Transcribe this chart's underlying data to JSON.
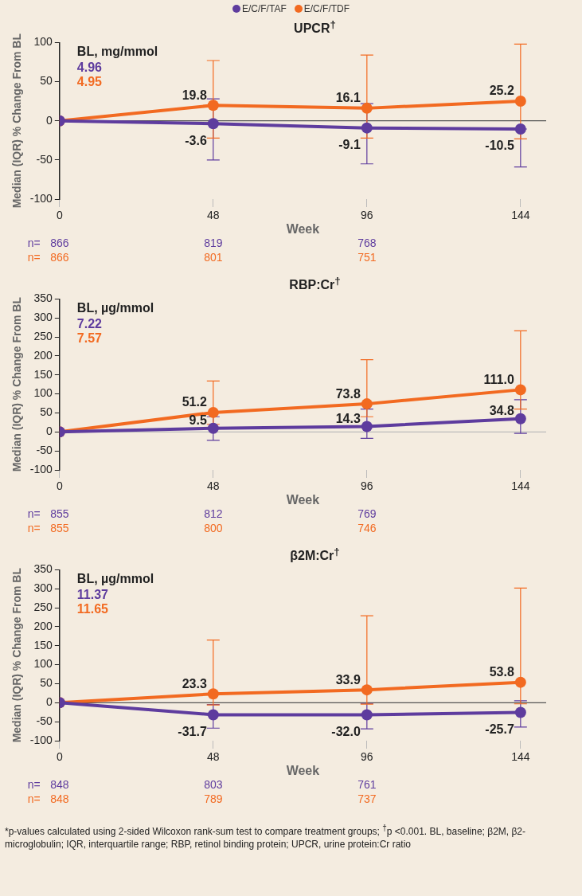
{
  "chart_data": [
    {
      "type": "line",
      "title": "UPCR$^{†}$",
      "xlabel": "Week",
      "ylabel": "Median (IQR) % Change From BL",
      "x": [
        0,
        48,
        96,
        144
      ],
      "xlim": [
        0,
        152
      ],
      "xticks": [
        0,
        48,
        96,
        144
      ],
      "ylim": [
        -100,
        100
      ],
      "yticks": [
        -100,
        -50,
        0,
        50,
        100
      ],
      "grid": false,
      "legend": "top",
      "marker": "circle",
      "line_style": "solid",
      "ref_lines": [
        {
          "axis": "y",
          "value": 0,
          "color": "#555555"
        }
      ],
      "annotations": [
        "BL, mg/mmol",
        "4.96",
        "4.95",
        "n= 866 819 768",
        "n= 866 801 751"
      ],
      "series": [
        {
          "name": "E/C/F/TAF",
          "color": "#5e3c9e",
          "values": [
            0,
            -3.6,
            -9.1,
            -10.5
          ],
          "errors": [
            null,
            [
              -50,
              28
            ],
            [
              -55,
              22
            ],
            [
              -59,
              -10.5
            ]
          ],
          "value_labels": [
            null,
            "-3.6",
            "-9.1",
            "-10.5"
          ]
        },
        {
          "name": "E/C/F/TDF",
          "color": "#f26a21",
          "values": [
            0,
            19.8,
            16.1,
            25.2
          ],
          "errors": [
            null,
            [
              -22,
              77
            ],
            [
              -22,
              84
            ],
            [
              -23,
              98
            ]
          ],
          "value_labels": [
            null,
            "19.8",
            "16.1",
            "25.2"
          ]
        }
      ]
    },
    {
      "type": "line",
      "title": "RBP:Cr$^{†}$",
      "xlabel": "Week",
      "ylabel": "Median (IQR) % Change From BL",
      "x": [
        0,
        48,
        96,
        144
      ],
      "xlim": [
        0,
        152
      ],
      "xticks": [
        0,
        48,
        96,
        144
      ],
      "ylim": [
        -100,
        350
      ],
      "yticks": [
        -100,
        -50,
        0,
        50,
        100,
        150,
        200,
        250,
        300,
        350
      ],
      "grid": false,
      "marker": "circle",
      "line_style": "solid",
      "ref_lines": [
        {
          "axis": "y",
          "value": 0,
          "color": "#bbbbbb"
        }
      ],
      "annotations": [
        "BL, µg/mmol",
        "7.22",
        "7.57",
        "n= 855 812 769",
        "n= 855 800 746"
      ],
      "series": [
        {
          "color": "#5e3c9e",
          "values": [
            0,
            9.5,
            14.3,
            34.8
          ],
          "errors": [
            null,
            [
              -22,
              40
            ],
            [
              -17,
              60
            ],
            [
              -4,
              85
            ]
          ],
          "value_labels": [
            null,
            "9.5",
            "14.3",
            "34.8"
          ]
        },
        {
          "color": "#f26a21",
          "values": [
            0,
            51.2,
            73.8,
            111.0
          ],
          "errors": [
            null,
            [
              20,
              134
            ],
            [
              40,
              190
            ],
            [
              60,
              266
            ]
          ],
          "value_labels": [
            null,
            "51.2",
            "73.8",
            "111.0"
          ]
        }
      ]
    },
    {
      "type": "line",
      "title": "β2M:Cr$^{†}$",
      "xlabel": "Week",
      "ylabel": "Median (IQR) % Change From BL",
      "x": [
        0,
        48,
        96,
        144
      ],
      "xlim": [
        0,
        152
      ],
      "xticks": [
        0,
        48,
        96,
        144
      ],
      "ylim": [
        -100,
        350
      ],
      "yticks": [
        -100,
        -50,
        0,
        50,
        100,
        150,
        200,
        250,
        300,
        350
      ],
      "grid": false,
      "marker": "circle",
      "line_style": "solid",
      "ref_lines": [
        {
          "axis": "y",
          "value": 0,
          "color": "#555555"
        }
      ],
      "annotations": [
        "BL, µg/mmol",
        "11.37",
        "11.65",
        "n= 848 803 761",
        "n= 848 789 737",
        "*p-values calculated using 2-sided Wilcoxon rank-sum test to compare treatment groups; $^{†}$p <0.001. BL, baseline; β2M, β2-microglobulin; IQR, interquartile range; RBP, retinol binding protein; UPCR, urine protein:Cr ratio"
      ],
      "series": [
        {
          "color": "#5e3c9e",
          "values": [
            0,
            -31.7,
            -32.0,
            -25.7
          ],
          "errors": [
            null,
            [
              -67,
              -5
            ],
            [
              -69,
              -2
            ],
            [
              -64,
              5
            ]
          ],
          "value_labels": [
            null,
            "-31.7",
            "-32.0",
            "-25.7"
          ]
        },
        {
          "color": "#f26a21",
          "values": [
            0,
            23.3,
            33.9,
            53.8
          ],
          "errors": [
            null,
            [
              -6,
              165
            ],
            [
              -4,
              229
            ],
            [
              -3,
              302
            ]
          ],
          "value_labels": [
            null,
            "23.3",
            "33.9",
            "53.8"
          ]
        }
      ]
    }
  ]
}
